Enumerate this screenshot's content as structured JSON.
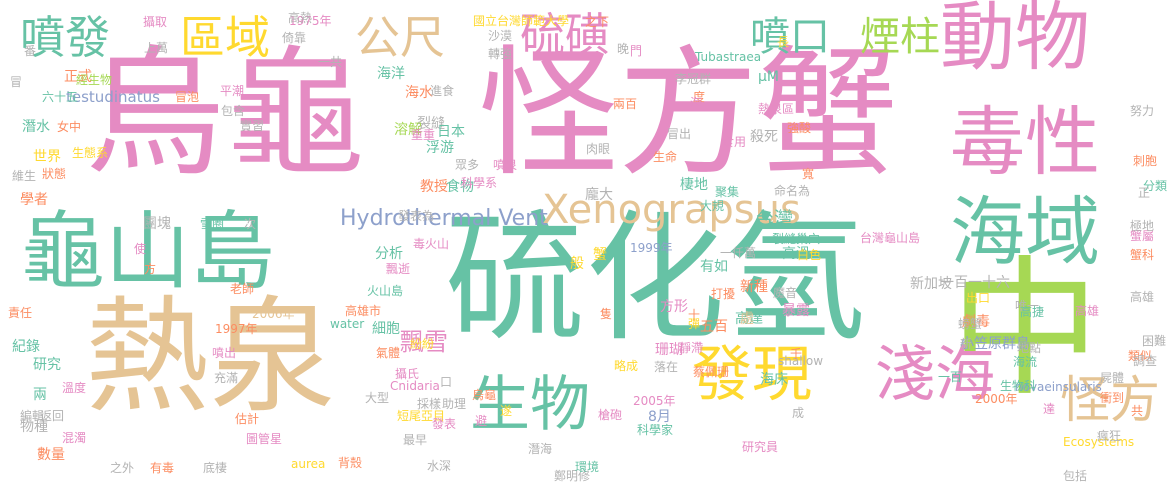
{
  "colors": {
    "pink": "#e58bc3",
    "green": "#66c2a5",
    "tan": "#e5c494",
    "lime": "#a6d854",
    "yellow": "#ffd92f",
    "slate": "#8da0cb",
    "orange": "#fc8d62",
    "gray": "#b3b3b3"
  },
  "words": [
    {
      "text": "烏龜",
      "color": "pink"
    },
    {
      "text": "怪方蟹",
      "color": "pink"
    },
    {
      "text": "硫化氫",
      "color": "green"
    },
    {
      "text": "熱泉",
      "color": "tan"
    },
    {
      "text": "龜山島",
      "color": "green"
    },
    {
      "text": "中",
      "color": "lime"
    },
    {
      "text": "動物",
      "color": "pink"
    },
    {
      "text": "毒性",
      "color": "pink"
    },
    {
      "text": "海域",
      "color": "green"
    },
    {
      "text": "發現",
      "color": "yellow"
    },
    {
      "text": "淺海",
      "color": "pink"
    },
    {
      "text": "生物",
      "color": "green"
    },
    {
      "text": "怪方",
      "color": "tan"
    },
    {
      "text": "噴發",
      "color": "green"
    },
    {
      "text": "區域",
      "color": "yellow"
    },
    {
      "text": "公尺",
      "color": "tan"
    },
    {
      "text": "硫磺",
      "color": "pink"
    },
    {
      "text": "噴口",
      "color": "green"
    },
    {
      "text": "煙柱",
      "color": "lime"
    },
    {
      "text": "Xenograpsus",
      "color": "tan"
    },
    {
      "text": "Hydrothermal Vent",
      "color": "slate"
    },
    {
      "text": "台灣",
      "color": "green"
    },
    {
      "text": "testudinatus",
      "color": "slate"
    },
    {
      "text": "海洋",
      "color": "green"
    },
    {
      "text": "海水",
      "color": "orange"
    },
    {
      "text": "裂縫",
      "color": "gray"
    },
    {
      "text": "浮游",
      "color": "green"
    },
    {
      "text": "食物",
      "color": "green"
    },
    {
      "text": "棲地",
      "color": "green"
    },
    {
      "text": "高溫",
      "color": "green"
    },
    {
      "text": "暴露",
      "color": "pink"
    },
    {
      "text": "新種",
      "color": "orange"
    },
    {
      "text": "劇毒",
      "color": "orange"
    },
    {
      "text": "小笠原群島",
      "color": "slate"
    },
    {
      "text": "新加坡",
      "color": "gray"
    },
    {
      "text": "細胞",
      "color": "green"
    },
    {
      "text": "分析",
      "color": "green"
    },
    {
      "text": "研究",
      "color": "green"
    },
    {
      "text": "物種",
      "color": "gray"
    },
    {
      "text": "數量",
      "color": "orange"
    },
    {
      "text": "世界",
      "color": "yellow"
    },
    {
      "text": "潛水",
      "color": "green"
    },
    {
      "text": "學者",
      "color": "orange"
    },
    {
      "text": "正式",
      "color": "orange"
    },
    {
      "text": "教授",
      "color": "orange"
    },
    {
      "text": "龐大",
      "color": "gray"
    },
    {
      "text": "般",
      "color": "yellow"
    },
    {
      "text": "飄雪",
      "color": "pink"
    },
    {
      "text": "有如",
      "color": "green"
    },
    {
      "text": "海床",
      "color": "green"
    },
    {
      "text": "8月",
      "color": "slate"
    },
    {
      "text": "高達",
      "color": "green"
    },
    {
      "text": "殺死",
      "color": "gray"
    },
    {
      "text": "μM",
      "color": "green"
    },
    {
      "text": "處",
      "color": "tan"
    },
    {
      "text": "兩",
      "color": "green"
    },
    {
      "text": "蟹",
      "color": "yellow"
    },
    {
      "text": "珊瑚",
      "color": "pink"
    },
    {
      "text": "方形",
      "color": "pink"
    },
    {
      "text": "五百",
      "color": "orange"
    },
    {
      "text": "一百一十六",
      "color": "gray"
    },
    {
      "text": "紀錄",
      "color": "green"
    },
    {
      "text": "溶解",
      "color": "lime"
    },
    {
      "text": "日本",
      "color": "green"
    },
    {
      "text": "團塊",
      "color": "gray"
    },
    {
      "text": "高雄",
      "color": "pink"
    },
    {
      "text": "出口",
      "color": "yellow"
    },
    {
      "text": "食用",
      "color": "pink"
    },
    {
      "text": "Tubastraea",
      "color": "green"
    },
    {
      "text": "2000年",
      "color": "orange"
    },
    {
      "text": "novaeinsularis",
      "color": "slate"
    },
    {
      "text": "Ecosystems",
      "color": "yellow"
    },
    {
      "text": "Cnidaria",
      "color": "pink"
    },
    {
      "text": "aurea",
      "color": "yellow"
    },
    {
      "text": "water",
      "color": "green"
    },
    {
      "text": "shallow",
      "color": "gray"
    },
    {
      "text": "1975年",
      "color": "pink"
    },
    {
      "text": "1997年",
      "color": "orange"
    },
    {
      "text": "1999年",
      "color": "slate"
    },
    {
      "text": "2005年",
      "color": "pink"
    },
    {
      "text": "2006年",
      "color": "tan"
    },
    {
      "text": "國立台灣師範大學",
      "color": "yellow"
    },
    {
      "text": "台灣龜山島",
      "color": "pink"
    },
    {
      "text": "高雄市",
      "color": "orange"
    },
    {
      "text": "火山島",
      "color": "green"
    },
    {
      "text": "一仟萬",
      "color": "gray"
    },
    {
      "text": "裂縫巢穴",
      "color": "green"
    },
    {
      "text": "熱泉區",
      "color": "pink"
    },
    {
      "text": "短尾亞目",
      "color": "yellow"
    },
    {
      "text": "生物科",
      "color": "green"
    },
    {
      "text": "科學家",
      "color": "green"
    },
    {
      "text": "研究員",
      "color": "pink"
    },
    {
      "text": "蔡佩珊",
      "color": "orange"
    },
    {
      "text": "鄭明修",
      "color": "gray"
    },
    {
      "text": "李冠群",
      "color": "gray"
    },
    {
      "text": "圖管星",
      "color": "pink"
    },
    {
      "text": "命名為",
      "color": "gray"
    },
    {
      "text": "環境",
      "color": "green"
    },
    {
      "text": "大規",
      "color": "green"
    },
    {
      "text": "聚集",
      "color": "green"
    },
    {
      "text": "雪圈",
      "color": "green"
    },
    {
      "text": "發表為",
      "color": "gray"
    },
    {
      "text": "科學系",
      "color": "pink"
    },
    {
      "text": "眾多",
      "color": "gray"
    },
    {
      "text": "肉眼",
      "color": "gray"
    },
    {
      "text": "冒出",
      "color": "gray"
    },
    {
      "text": "生命",
      "color": "orange"
    },
    {
      "text": "兩百",
      "color": "orange"
    },
    {
      "text": "強酸",
      "color": "orange"
    },
    {
      "text": "平潮",
      "color": "pink"
    },
    {
      "text": "包含",
      "color": "gray"
    },
    {
      "text": "實習",
      "color": "gray"
    },
    {
      "text": "進食",
      "color": "gray"
    },
    {
      "text": "重重",
      "color": "pink"
    },
    {
      "text": "噴泉",
      "color": "pink"
    },
    {
      "text": "冒泡",
      "color": "orange"
    },
    {
      "text": "經生物",
      "color": "lime"
    },
    {
      "text": "生態系",
      "color": "yellow"
    },
    {
      "text": "女中",
      "color": "orange"
    },
    {
      "text": "六十五",
      "color": "green"
    },
    {
      "text": "狀態",
      "color": "orange"
    },
    {
      "text": "維生",
      "color": "gray"
    },
    {
      "text": "攝取",
      "color": "pink"
    },
    {
      "text": "倚靠",
      "color": "gray"
    },
    {
      "text": "高熱",
      "color": "gray"
    },
    {
      "text": "沙漠",
      "color": "gray"
    },
    {
      "text": "轉強",
      "color": "gray"
    },
    {
      "text": "之下",
      "color": "orange"
    },
    {
      "text": "度",
      "color": "orange"
    },
    {
      "text": "一共",
      "color": "gray"
    },
    {
      "text": "上萬",
      "color": "gray"
    },
    {
      "text": "努力",
      "color": "gray"
    },
    {
      "text": "刺胞",
      "color": "orange"
    },
    {
      "text": "分類",
      "color": "green"
    },
    {
      "text": "蟹屬",
      "color": "pink"
    },
    {
      "text": "蟹科",
      "color": "orange"
    },
    {
      "text": "高雄",
      "color": "gray"
    },
    {
      "text": "困難",
      "color": "gray"
    },
    {
      "text": "類似",
      "color": "orange"
    },
    {
      "text": "調查",
      "color": "gray"
    },
    {
      "text": "屍體",
      "color": "gray"
    },
    {
      "text": "衝到",
      "color": "orange"
    },
    {
      "text": "瘋狂",
      "color": "gray"
    },
    {
      "text": "包括",
      "color": "gray"
    },
    {
      "text": "海流",
      "color": "green"
    },
    {
      "text": "螃蟹",
      "color": "gray"
    },
    {
      "text": "新",
      "color": "gray"
    },
    {
      "text": "地點",
      "color": "gray"
    },
    {
      "text": "唯一",
      "color": "gray"
    },
    {
      "text": "魔音",
      "color": "gray"
    },
    {
      "text": "靜滯",
      "color": "pink"
    },
    {
      "text": "落在",
      "color": "gray"
    },
    {
      "text": "槍砲",
      "color": "pink"
    },
    {
      "text": "打擾",
      "color": "orange"
    },
    {
      "text": "毒火山",
      "color": "pink"
    },
    {
      "text": "飄逝",
      "color": "pink"
    },
    {
      "text": "老師",
      "color": "orange"
    },
    {
      "text": "噴出",
      "color": "pink"
    },
    {
      "text": "氣體",
      "color": "orange"
    },
    {
      "text": "紛紛",
      "color": "yellow"
    },
    {
      "text": "攝氏",
      "color": "pink"
    },
    {
      "text": "採樣",
      "color": "gray"
    },
    {
      "text": "助理",
      "color": "gray"
    },
    {
      "text": "發表",
      "color": "pink"
    },
    {
      "text": "最早",
      "color": "gray"
    },
    {
      "text": "大型",
      "color": "gray"
    },
    {
      "text": "估計",
      "color": "orange"
    },
    {
      "text": "背殼",
      "color": "orange"
    },
    {
      "text": "之外",
      "color": "gray"
    },
    {
      "text": "有毒",
      "color": "orange"
    },
    {
      "text": "底棲",
      "color": "gray"
    },
    {
      "text": "水深",
      "color": "gray"
    },
    {
      "text": "充滿",
      "color": "gray"
    },
    {
      "text": "溫度",
      "color": "pink"
    },
    {
      "text": "編輯",
      "color": "gray"
    },
    {
      "text": "返回",
      "color": "gray"
    },
    {
      "text": "混濁",
      "color": "pink"
    },
    {
      "text": "責任",
      "color": "orange"
    },
    {
      "text": "次",
      "color": "gray"
    },
    {
      "text": "使",
      "color": "pink"
    },
    {
      "text": "方",
      "color": "orange"
    },
    {
      "text": "番",
      "color": "gray"
    },
    {
      "text": "冒",
      "color": "gray"
    },
    {
      "text": "海",
      "color": "pink"
    },
    {
      "text": "門",
      "color": "pink"
    },
    {
      "text": "長",
      "color": "yellow"
    },
    {
      "text": "成",
      "color": "gray"
    },
    {
      "text": "寬",
      "color": "orange"
    },
    {
      "text": "千",
      "color": "orange"
    },
    {
      "text": "正",
      "color": "gray"
    },
    {
      "text": "達",
      "color": "pink"
    },
    {
      "text": "共",
      "color": "orange"
    },
    {
      "text": "避",
      "color": "pink"
    },
    {
      "text": "遂",
      "color": "yellow"
    },
    {
      "text": "十",
      "color": "orange"
    },
    {
      "text": "口",
      "color": "gray"
    },
    {
      "text": "一百",
      "color": "green"
    },
    {
      "text": "潛海",
      "color": "gray"
    },
    {
      "text": "彈",
      "color": "yellow"
    },
    {
      "text": "烏龜",
      "color": "orange"
    },
    {
      "text": "晚",
      "color": "gray"
    },
    {
      "text": "極地",
      "color": "gray"
    },
    {
      "text": "白色",
      "color": "yellow"
    },
    {
      "text": "高捷",
      "color": "green"
    },
    {
      "text": "隻",
      "color": "orange"
    },
    {
      "text": "略成",
      "color": "yellow"
    }
  ]
}
